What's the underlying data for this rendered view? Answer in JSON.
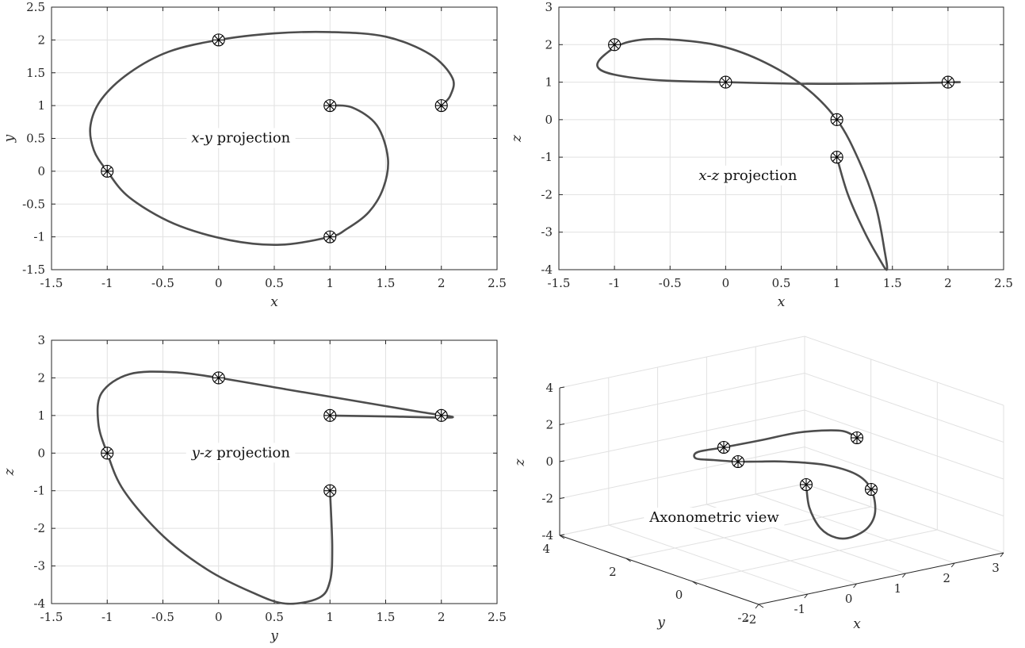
{
  "colors": {
    "curve": "#4d4d4d",
    "grid": "#e1e1e1",
    "axis": "#262626",
    "marker": "#000000"
  },
  "chart_data": [
    {
      "type": "line",
      "id": "xy",
      "annotation": {
        "parts": [
          {
            "text": "x",
            "italic": true
          },
          {
            "text": "-",
            "italic": false
          },
          {
            "text": "y",
            "italic": true
          },
          {
            "text": " projection",
            "italic": false
          }
        ],
        "x": 0.2,
        "y": 0.5
      },
      "xlabel": "x",
      "ylabel": "y",
      "xlim": [
        -1.5,
        2.5
      ],
      "ylim": [
        -1.5,
        2.5
      ],
      "xticks": [
        -1.5,
        -1,
        -0.5,
        0,
        0.5,
        1,
        1.5,
        2,
        2.5
      ],
      "yticks": [
        -1.5,
        -1,
        -0.5,
        0,
        0.5,
        1,
        1.5,
        2,
        2.5
      ],
      "xtick_labels": [
        "-1.5",
        "-1",
        "-0.5",
        "0",
        "0.5",
        "1",
        "1.5",
        "2",
        "2.5"
      ],
      "ytick_labels": [
        "-1.5",
        "-1",
        "-0.5",
        "0",
        "0.5",
        "1",
        "1.5",
        "2",
        "2.5"
      ],
      "grid": true,
      "series": [
        {
          "x": [
            1,
            1.2,
            1.42,
            1.52,
            1.48,
            1.35,
            1.15,
            1,
            0.55,
            0.1,
            -0.4,
            -0.8,
            -1,
            -1.12,
            -1.15,
            -1.05,
            -0.8,
            -0.45,
            0,
            0.5,
            1,
            1.5,
            1.9,
            2.1,
            2.08,
            2
          ],
          "y": [
            1,
            0.97,
            0.7,
            0.2,
            -0.25,
            -0.62,
            -0.88,
            -1,
            -1.12,
            -1.05,
            -0.8,
            -0.4,
            0,
            0.32,
            0.7,
            1.1,
            1.5,
            1.82,
            2,
            2.1,
            2.12,
            2.05,
            1.78,
            1.42,
            1.15,
            1
          ]
        }
      ],
      "markers": {
        "x": [
          1,
          1,
          -1,
          0,
          2
        ],
        "y": [
          1,
          -1,
          0,
          2,
          1
        ]
      }
    },
    {
      "type": "line",
      "id": "xz",
      "annotation": {
        "parts": [
          {
            "text": "x",
            "italic": true
          },
          {
            "text": "-",
            "italic": false
          },
          {
            "text": "z",
            "italic": true
          },
          {
            "text": " projection",
            "italic": false
          }
        ],
        "x": 0.2,
        "y": -1.5
      },
      "xlabel": "x",
      "ylabel": "z",
      "xlim": [
        -1.5,
        2.5
      ],
      "ylim": [
        -4,
        3
      ],
      "xticks": [
        -1.5,
        -1,
        -0.5,
        0,
        0.5,
        1,
        1.5,
        2,
        2.5
      ],
      "yticks": [
        -4,
        -3,
        -2,
        -1,
        0,
        1,
        2,
        3
      ],
      "xtick_labels": [
        "-1.5",
        "-1",
        "-0.5",
        "0",
        "0.5",
        "1",
        "1.5",
        "2",
        "2.5"
      ],
      "ytick_labels": [
        "-4",
        "-3",
        "-2",
        "-1",
        "0",
        "1",
        "2",
        "3"
      ],
      "grid": true,
      "series": [
        {
          "x": [
            1,
            1.1,
            1.25,
            1.38,
            1.45,
            1.43,
            1.35,
            1.2,
            1,
            0.7,
            0.3,
            -0.1,
            -0.6,
            -0.9,
            -1.1,
            -1.15,
            -1,
            -0.6,
            0,
            0.6,
            1.2,
            1.8,
            2.1,
            2
          ],
          "y": [
            -1,
            -2,
            -3,
            -3.7,
            -4,
            -3.5,
            -2.3,
            -1.1,
            0,
            0.9,
            1.6,
            2,
            2.15,
            2.05,
            1.7,
            1.4,
            1.2,
            1.05,
            1,
            0.96,
            0.96,
            0.98,
            1,
            1
          ]
        }
      ],
      "markers": {
        "x": [
          1,
          1,
          -1,
          0,
          2
        ],
        "y": [
          -1,
          0,
          2,
          1,
          1
        ]
      }
    },
    {
      "type": "line",
      "id": "yz",
      "annotation": {
        "parts": [
          {
            "text": "y",
            "italic": true
          },
          {
            "text": "-",
            "italic": false
          },
          {
            "text": "z",
            "italic": true
          },
          {
            "text": " projection",
            "italic": false
          }
        ],
        "x": 0.2,
        "y": 0
      },
      "xlabel": "y",
      "ylabel": "z",
      "xlim": [
        -1.5,
        2.5
      ],
      "ylim": [
        -4,
        3
      ],
      "xticks": [
        -1.5,
        -1,
        -0.5,
        0,
        0.5,
        1,
        1.5,
        2,
        2.5
      ],
      "yticks": [
        -4,
        -3,
        -2,
        -1,
        0,
        1,
        2,
        3
      ],
      "xtick_labels": [
        "-1.5",
        "-1",
        "-0.5",
        "0",
        "0.5",
        "1",
        "1.5",
        "2",
        "2.5"
      ],
      "ytick_labels": [
        "-4",
        "-3",
        "-2",
        "-1",
        "0",
        "1",
        "2",
        "3"
      ],
      "grid": true,
      "series": [
        {
          "x": [
            1,
            1.02,
            1,
            0.9,
            0.6,
            0.3,
            -0.1,
            -0.5,
            -0.85,
            -1,
            -1.08,
            -1.05,
            -0.8,
            -0.4,
            0,
            0.6,
            1.2,
            1.8,
            2.1,
            1.6,
            1
          ],
          "y": [
            -1,
            -2.5,
            -3.4,
            -3.85,
            -4,
            -3.7,
            -3.1,
            -2.2,
            -1,
            0,
            0.8,
            1.6,
            2.1,
            2.15,
            2,
            1.7,
            1.4,
            1.1,
            0.95,
            0.97,
            1
          ]
        }
      ],
      "markers": {
        "x": [
          1,
          -1,
          0,
          1,
          2
        ],
        "y": [
          -1,
          0,
          2,
          1,
          1
        ]
      }
    },
    {
      "type": "line",
      "id": "axo",
      "annotation": {
        "parts": [
          {
            "text": "Axonometric view",
            "italic": false
          }
        ]
      },
      "xlabel": "x",
      "ylabel": "y",
      "zlabel": "z",
      "xlim": [
        -2,
        3
      ],
      "ylim": [
        -2,
        4
      ],
      "zlim": [
        -4,
        4
      ],
      "xticks": [
        -2,
        -1,
        0,
        1,
        2,
        3
      ],
      "yticks": [
        -2,
        0,
        2,
        4
      ],
      "zticks": [
        -4,
        -2,
        0,
        2,
        4
      ],
      "xtick_labels": [
        "-2",
        "-1",
        "0",
        "1",
        "2",
        "3"
      ],
      "ytick_labels": [
        "-2",
        "0",
        "2",
        "4"
      ],
      "ztick_labels": [
        "-4",
        "-2",
        "0",
        "2",
        "4"
      ],
      "grid": true
    }
  ]
}
